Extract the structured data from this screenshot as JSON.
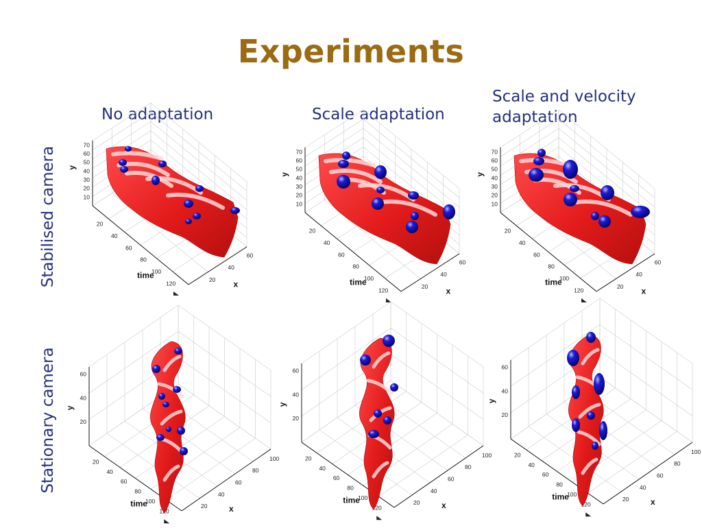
{
  "slide": {
    "title": "Experiments"
  },
  "columns": [
    {
      "label": "No adaptation"
    },
    {
      "label": "Scale adaptation"
    },
    {
      "label": "Scale and velocity adaptation"
    }
  ],
  "rows": [
    {
      "label": "Stabilised camera"
    },
    {
      "label": "Stationary camera"
    }
  ],
  "colors": {
    "title": "#9b6a12",
    "labels": "#25307d",
    "surface": "#e31b1b",
    "blob": "#1c1cd8"
  },
  "axes": {
    "stabilised": {
      "x_label": "x",
      "y_label": "y",
      "t_label": "time",
      "y_ticks": [
        "10",
        "20",
        "30",
        "40",
        "50",
        "60",
        "70"
      ],
      "t_ticks": [
        "20",
        "40",
        "60",
        "80",
        "100",
        "120"
      ],
      "x_ticks": [
        "20",
        "40",
        "60"
      ]
    },
    "stationary": {
      "x_label": "x",
      "y_label": "y",
      "t_label": "time",
      "y_ticks": [
        "20",
        "40",
        "60"
      ],
      "t_ticks": [
        "20",
        "40",
        "60",
        "80",
        "100",
        "120"
      ],
      "x_ticks": [
        "20",
        "40",
        "60",
        "80",
        "100"
      ]
    }
  }
}
